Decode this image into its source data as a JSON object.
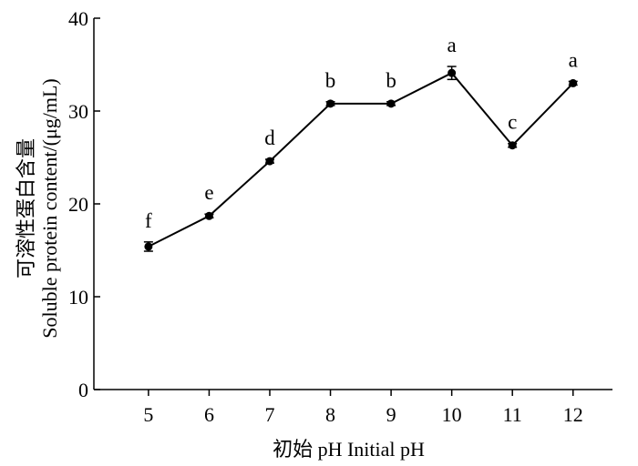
{
  "chart_data": {
    "type": "line",
    "title": "",
    "xlabel": "初始 pH Initial pH",
    "ylabel_cn": "可溶性蛋白含量",
    "ylabel_en": "Soluble protein content/(μg/mL)",
    "x": [
      5,
      6,
      7,
      8,
      9,
      10,
      11,
      12
    ],
    "xlim": [
      4.1,
      12.65
    ],
    "ylim": [
      0,
      40
    ],
    "yticks": [
      0,
      10,
      20,
      30,
      40
    ],
    "grid": false,
    "legend": "none",
    "series": [
      {
        "values": [
          15.4,
          18.7,
          24.6,
          30.8,
          30.8,
          34.1,
          26.3,
          33.0
        ],
        "error": [
          0.5,
          0.2,
          0.2,
          0.2,
          0.2,
          0.7,
          0.2,
          0.2
        ],
        "labels": [
          "f",
          "e",
          "d",
          "b",
          "b",
          "a",
          "c",
          "a"
        ],
        "color": "#000000"
      }
    ]
  }
}
